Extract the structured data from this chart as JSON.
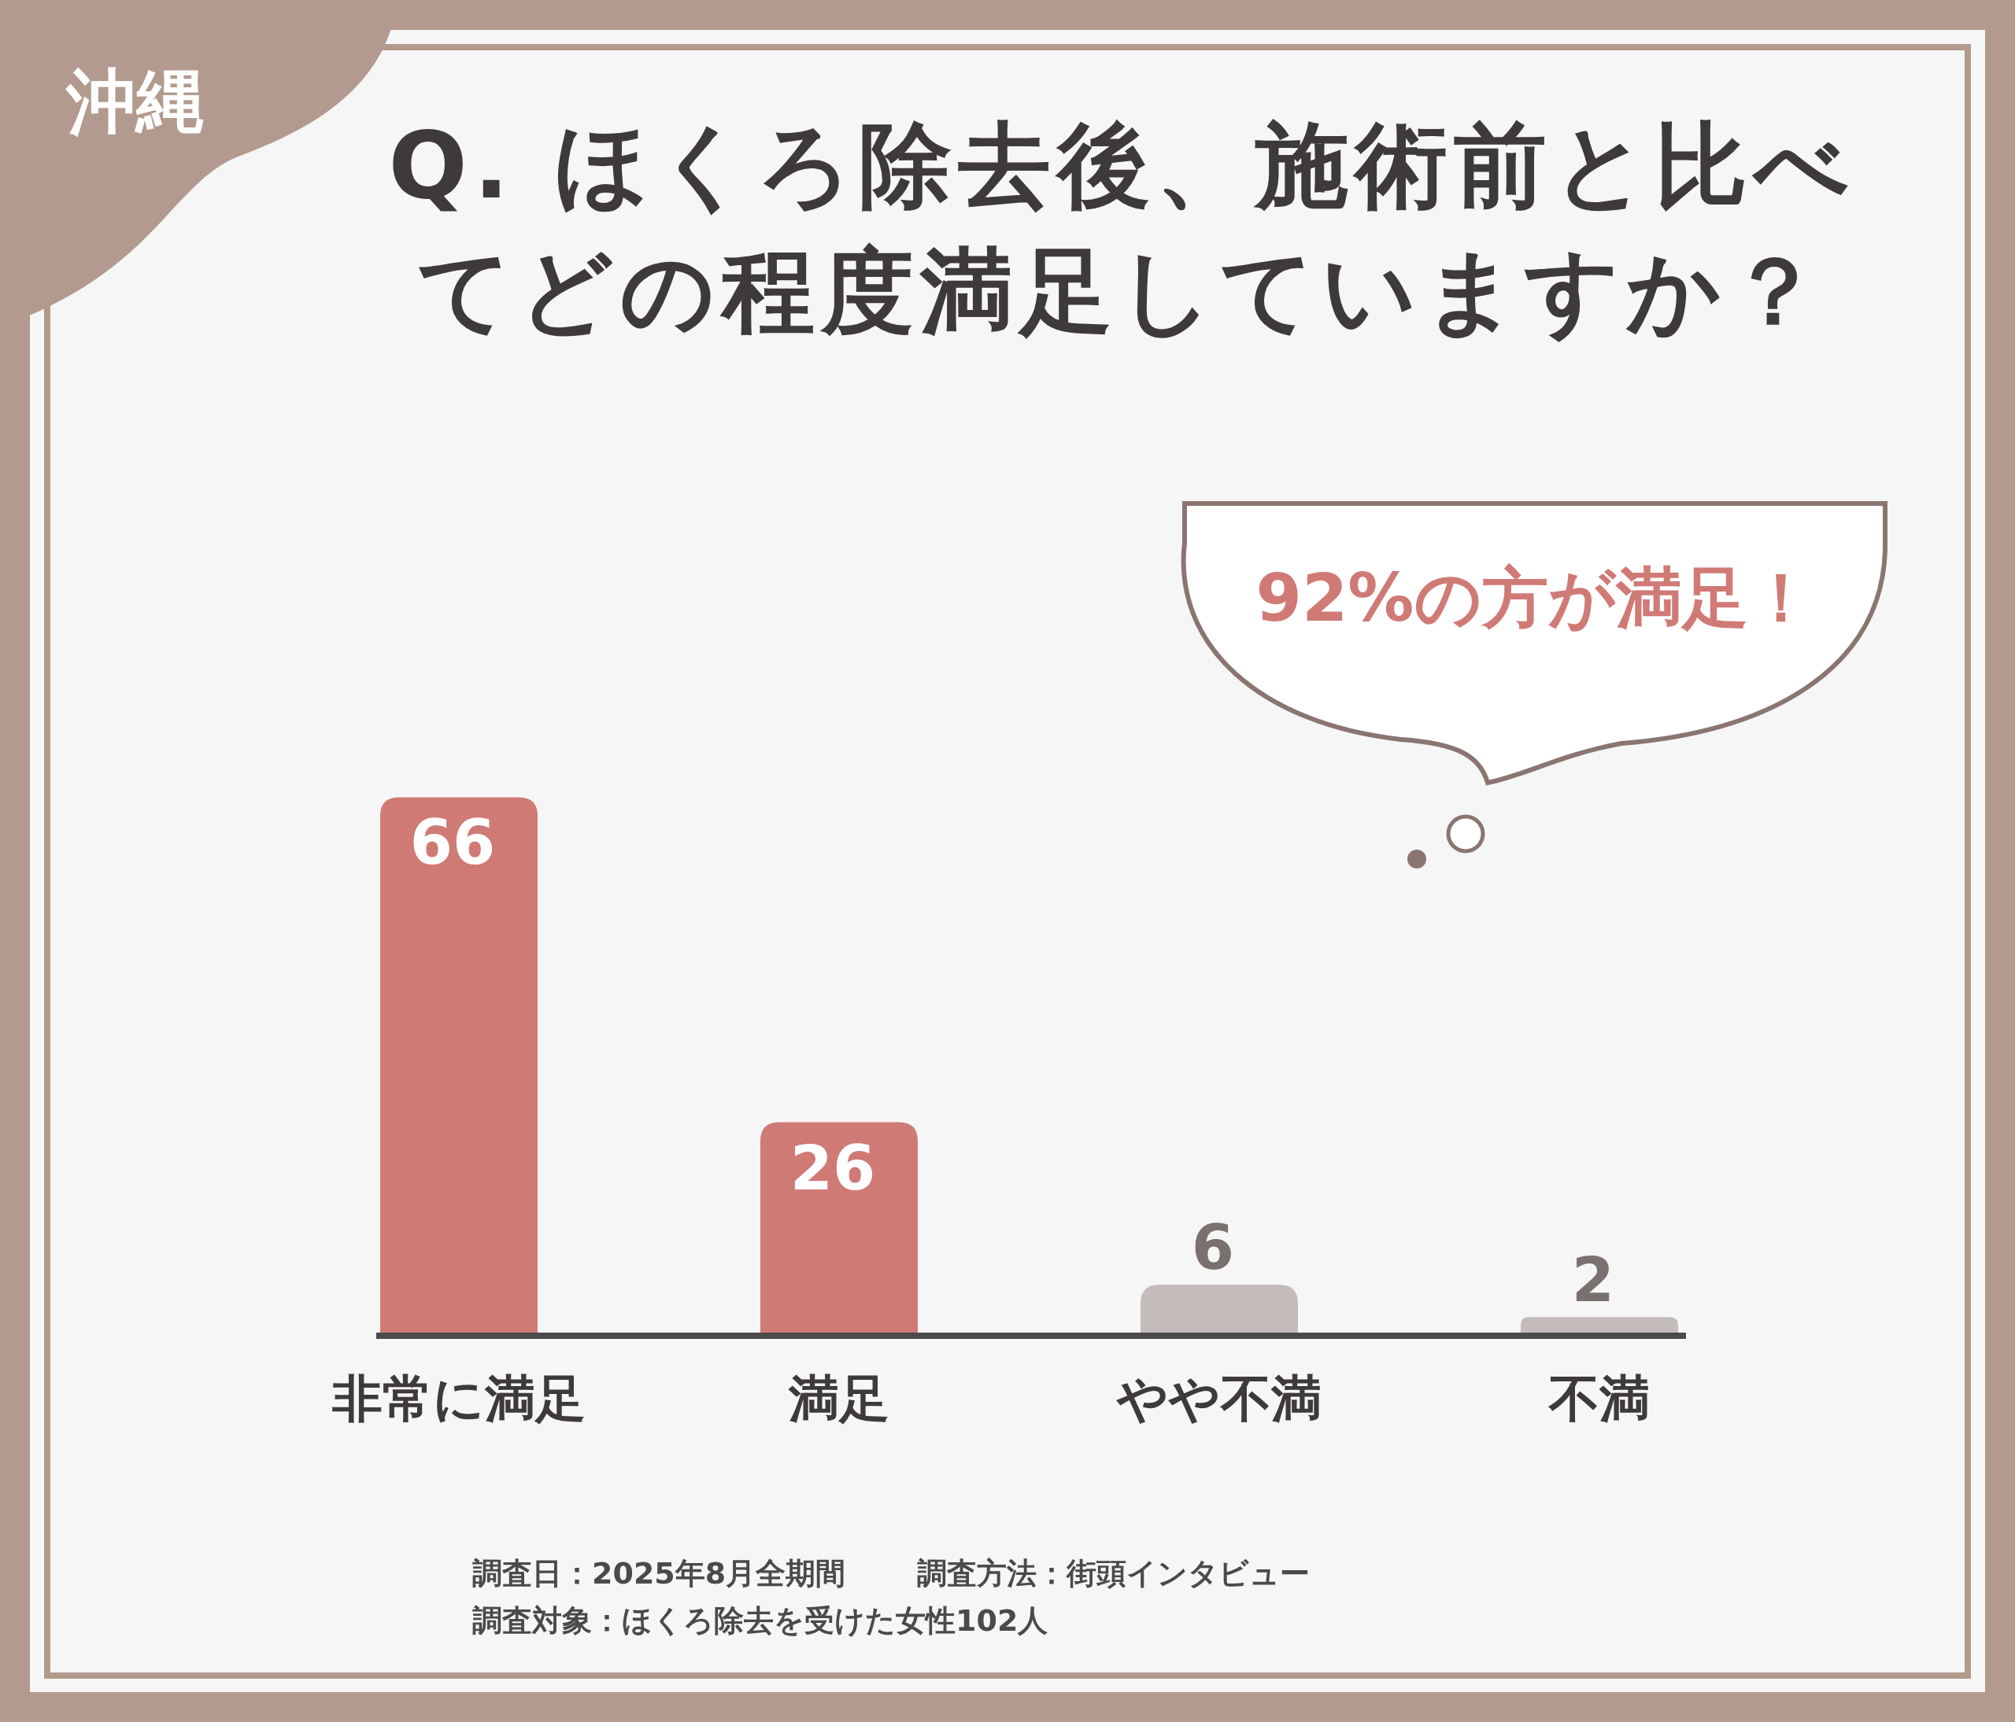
{
  "chart_data": {
    "type": "bar",
    "title": "Q. ほくろ除去後、施術前と比べてどの程度満足していますか？",
    "categories": [
      "非常に満足",
      "満足",
      "やや不満",
      "不満"
    ],
    "values": [
      66,
      26,
      6,
      2
    ],
    "colors": [
      "#d07a76",
      "#d07a76",
      "#c4bcba",
      "#c4bcba"
    ],
    "data_labels": true,
    "annotations": [
      "沖縄",
      "92%の方が満足！",
      "調査日：2025年8月全期間",
      "調査方法：街頭インタビュー",
      "調査対象：ほくろ除去を受けた女性102人"
    ]
  }
}
